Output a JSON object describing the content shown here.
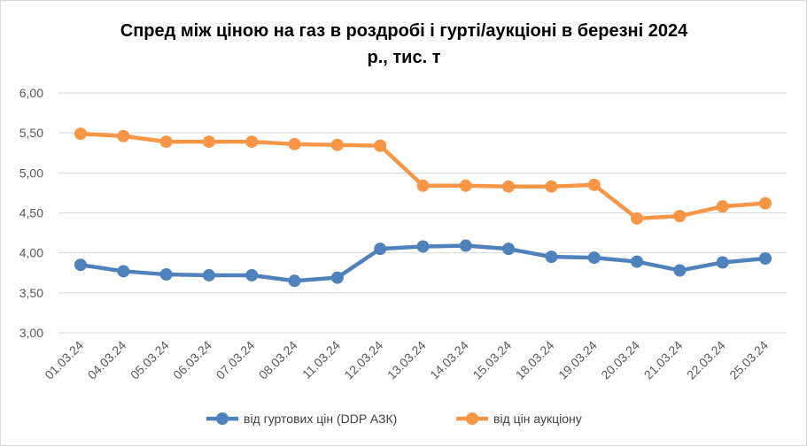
{
  "chart_data": {
    "type": "line",
    "title_lines": [
      "Спред між ціною на газ в роздробі і гурті/аукціоні в березні 2024",
      "р., тис. т"
    ],
    "categories": [
      "01.03.24",
      "04.03.24",
      "05.03.24",
      "06.03.24",
      "07.03.24",
      "08.03.24",
      "11.03.24",
      "12.03.24",
      "13.03.24",
      "14.03.24",
      "15.03.24",
      "18.03.24",
      "19.03.24",
      "20.03.24",
      "21.03.24",
      "22.03.24",
      "25.03.24"
    ],
    "yticks": [
      "3,00",
      "3,50",
      "4,00",
      "4,50",
      "5,00",
      "5,50",
      "6,00"
    ],
    "ylim": [
      3,
      6
    ],
    "grid": true,
    "legend_position": "bottom",
    "series": [
      {
        "name": "від гуртових цін (DDP АЗК)",
        "color": "#4f81bd",
        "values": [
          3.85,
          3.77,
          3.73,
          3.72,
          3.72,
          3.65,
          3.69,
          4.05,
          4.08,
          4.09,
          4.05,
          3.95,
          3.94,
          3.89,
          3.78,
          3.88,
          3.93
        ]
      },
      {
        "name": "від цін аукціону",
        "color": "#f79646",
        "values": [
          5.49,
          5.46,
          5.39,
          5.39,
          5.39,
          5.36,
          5.35,
          5.34,
          4.84,
          4.84,
          4.83,
          4.83,
          4.85,
          4.43,
          4.46,
          4.58,
          4.62
        ]
      }
    ]
  }
}
